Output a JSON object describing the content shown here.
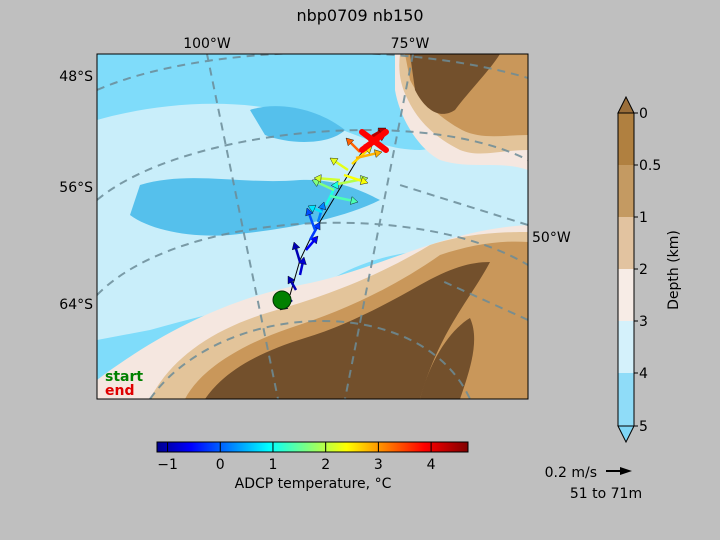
{
  "title": "nbp0709 nb150",
  "map": {
    "lat_labels": [
      "48°S",
      "56°S",
      "64°S"
    ],
    "lon_labels_top": [
      "100°W",
      "75°W"
    ],
    "lon_label_right": "50°W",
    "legend": {
      "start": "start",
      "end": "end"
    },
    "colors": {
      "water_deep": "#7fdcfa",
      "water_mid": "#55c0ec",
      "water_shallow": "#c9eefa",
      "shelf": "#f5e7e0",
      "land_light": "#e3c49a",
      "land_mid": "#c9975a",
      "land_dark": "#73502c",
      "start_marker": "#008000",
      "end_marker": "#ff0000"
    }
  },
  "temperature_colorbar": {
    "label": "ADCP temperature, °C",
    "ticks": [
      "−1",
      "0",
      "1",
      "2",
      "3",
      "4"
    ],
    "min": -1.2,
    "max": 4.7
  },
  "depth_colorbar": {
    "label": "Depth (km)",
    "ticks": [
      "0",
      "0.5",
      "1",
      "2",
      "3",
      "4",
      "5"
    ]
  },
  "scale": {
    "speed_label": "0.2 m/s",
    "depth_range": "51 to 71m"
  }
}
